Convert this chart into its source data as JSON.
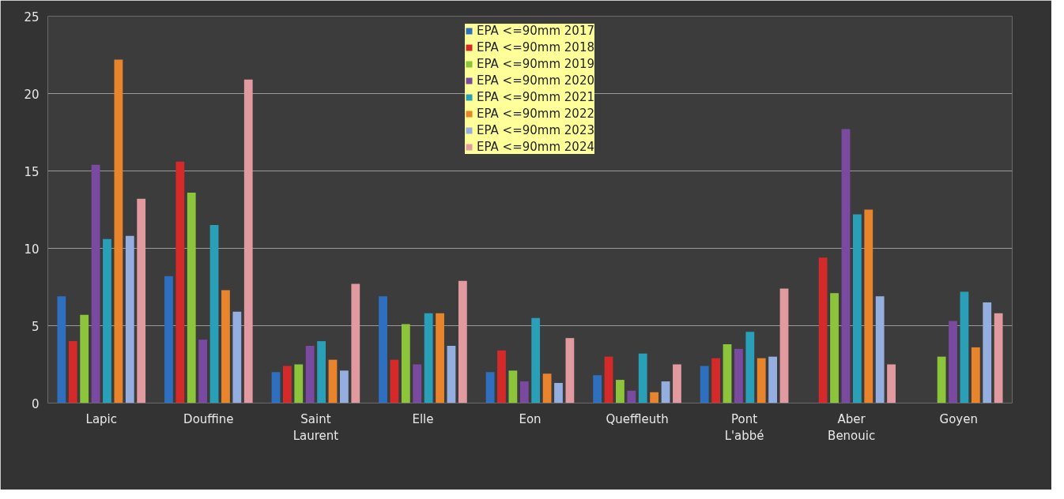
{
  "chart_data": {
    "type": "bar",
    "categories": [
      "Lapic",
      "Douffine",
      "Saint Laurent",
      "Elle",
      "Eon",
      "Queffleuth",
      "Pont L'abbé",
      "Aber Benouic",
      "Goyen"
    ],
    "ylim": [
      0,
      25
    ],
    "yticks": [
      0,
      5,
      10,
      15,
      20,
      25
    ],
    "grid": "y",
    "legend": "top",
    "series": [
      {
        "name": "EPA <=90mm 2017",
        "color": "#2e6fc0",
        "values": [
          6.9,
          8.2,
          2.0,
          6.9,
          2.0,
          1.8,
          2.4,
          null,
          null
        ]
      },
      {
        "name": "EPA <=90mm 2018",
        "color": "#d42a2a",
        "values": [
          4.0,
          15.6,
          2.4,
          2.8,
          3.4,
          3.0,
          2.9,
          9.4,
          null
        ]
      },
      {
        "name": "EPA <=90mm 2019",
        "color": "#8cc43c",
        "values": [
          5.7,
          13.6,
          2.5,
          5.1,
          2.1,
          1.5,
          3.8,
          7.1,
          3.0
        ]
      },
      {
        "name": "EPA <=90mm 2020",
        "color": "#7a4aa0",
        "values": [
          15.4,
          4.1,
          3.7,
          2.5,
          1.4,
          0.8,
          3.5,
          17.7,
          5.3
        ]
      },
      {
        "name": "EPA <=90mm 2021",
        "color": "#2aa0b8",
        "values": [
          10.6,
          11.5,
          4.0,
          5.8,
          5.5,
          3.2,
          4.6,
          12.2,
          7.2
        ]
      },
      {
        "name": "EPA <=90mm 2022",
        "color": "#e8842c",
        "values": [
          22.2,
          7.3,
          2.8,
          5.8,
          1.9,
          0.7,
          2.9,
          12.5,
          3.6
        ]
      },
      {
        "name": "EPA <=90mm 2023",
        "color": "#94aee0",
        "values": [
          10.8,
          5.9,
          2.1,
          3.7,
          1.3,
          1.4,
          3.0,
          6.9,
          6.5
        ]
      },
      {
        "name": "EPA <=90mm 2024",
        "color": "#e09aa0",
        "values": [
          13.2,
          20.9,
          7.7,
          7.9,
          4.2,
          2.5,
          7.4,
          2.5,
          5.8
        ]
      }
    ]
  }
}
